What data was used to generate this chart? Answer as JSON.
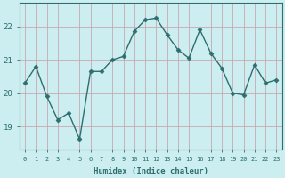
{
  "x": [
    0,
    1,
    2,
    3,
    4,
    5,
    6,
    7,
    8,
    9,
    10,
    11,
    12,
    13,
    14,
    15,
    16,
    17,
    18,
    19,
    20,
    21,
    22,
    23
  ],
  "y": [
    20.3,
    20.8,
    19.9,
    19.2,
    19.4,
    18.62,
    20.65,
    20.65,
    21.0,
    21.1,
    21.85,
    22.2,
    22.25,
    21.75,
    21.3,
    21.05,
    21.9,
    21.2,
    20.75,
    20.0,
    19.95,
    20.85,
    20.3,
    20.4
  ],
  "line_color": "#2d6e6e",
  "marker": "D",
  "marker_size": 2.5,
  "bg_color": "#cceef0",
  "grid_color": "#c8a8b0",
  "xlabel": "Humidex (Indice chaleur)",
  "xlim": [
    -0.5,
    23.5
  ],
  "ylim": [
    18.3,
    22.7
  ],
  "yticks": [
    19,
    20,
    21,
    22
  ],
  "xticks": [
    0,
    1,
    2,
    3,
    4,
    5,
    6,
    7,
    8,
    9,
    10,
    11,
    12,
    13,
    14,
    15,
    16,
    17,
    18,
    19,
    20,
    21,
    22,
    23
  ],
  "fig_width": 3.2,
  "fig_height": 2.0,
  "dpi": 100
}
